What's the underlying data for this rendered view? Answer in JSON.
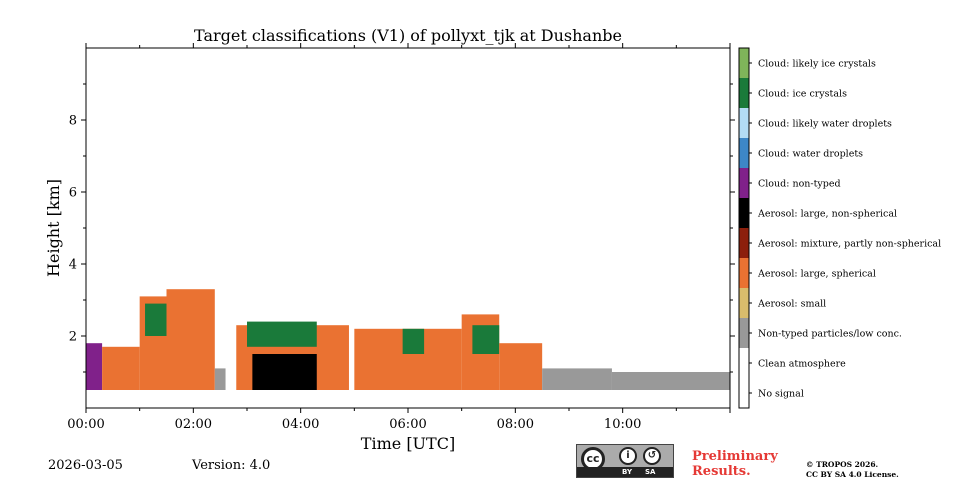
{
  "chart_data": {
    "type": "heatmap",
    "title": "Target classifications (V1) of pollyxt_tjk at Dushanbe",
    "xlabel": "Time [UTC]",
    "ylabel": "Height [km]",
    "xlim_hours": [
      0,
      12
    ],
    "ylim_km": [
      0,
      10
    ],
    "x_ticks": [
      {
        "value": 0,
        "label": "00:00"
      },
      {
        "value": 2,
        "label": "02:00"
      },
      {
        "value": 4,
        "label": "04:00"
      },
      {
        "value": 6,
        "label": "06:00"
      },
      {
        "value": 8,
        "label": "08:00"
      },
      {
        "value": 10,
        "label": "10:00"
      }
    ],
    "y_ticks": [
      {
        "value": 2,
        "label": "2"
      },
      {
        "value": 4,
        "label": "4"
      },
      {
        "value": 6,
        "label": "6"
      },
      {
        "value": 8,
        "label": "8"
      }
    ],
    "classes": [
      {
        "label": "Cloud: likely ice crystals",
        "color": "#7fb45a"
      },
      {
        "label": "Cloud: ice crystals",
        "color": "#1a7a3a"
      },
      {
        "label": "Cloud: likely water droplets",
        "color": "#b3dcf5"
      },
      {
        "label": "Cloud: water droplets",
        "color": "#3d87c7"
      },
      {
        "label": "Cloud: non-typed",
        "color": "#80218a"
      },
      {
        "label": "Aerosol: large, non-spherical",
        "color": "#000000"
      },
      {
        "label": "Aerosol: mixture, partly non-spherical",
        "color": "#8c1f0c"
      },
      {
        "label": "Aerosol: large, spherical",
        "color": "#ea7232"
      },
      {
        "label": "Aerosol: small",
        "color": "#d9bc6c"
      },
      {
        "label": "Non-typed particles/low conc.",
        "color": "#999999"
      },
      {
        "label": "Clean atmosphere",
        "color": "#ffffff"
      },
      {
        "label": "No signal",
        "color": "#ffffff"
      }
    ],
    "segments": [
      {
        "t0": 0.0,
        "t1": 0.3,
        "base_km": 0.5,
        "top_km": 1.8,
        "class": "Cloud: non-typed"
      },
      {
        "t0": 0.3,
        "t1": 1.0,
        "base_km": 0.5,
        "top_km": 1.7,
        "class": "Aerosol: large, spherical"
      },
      {
        "t0": 1.0,
        "t1": 1.5,
        "base_km": 0.5,
        "top_km": 3.1,
        "class": "Aerosol: large, spherical"
      },
      {
        "t0": 1.1,
        "t1": 1.8,
        "base_km": 2.0,
        "top_km": 2.9,
        "class": "Cloud: ice crystals"
      },
      {
        "t0": 1.5,
        "t1": 2.4,
        "base_km": 0.5,
        "top_km": 3.3,
        "class": "Aerosol: large, spherical"
      },
      {
        "t0": 2.4,
        "t1": 2.6,
        "base_km": 0.5,
        "top_km": 1.1,
        "class": "Non-typed particles/low conc."
      },
      {
        "t0": 2.8,
        "t1": 4.5,
        "base_km": 0.5,
        "top_km": 2.3,
        "class": "Aerosol: large, spherical"
      },
      {
        "t0": 3.1,
        "t1": 4.3,
        "base_km": 0.5,
        "top_km": 1.5,
        "class": "Aerosol: large, non-spherical"
      },
      {
        "t0": 3.0,
        "t1": 4.3,
        "base_km": 1.7,
        "top_km": 2.4,
        "class": "Cloud: ice crystals"
      },
      {
        "t0": 4.5,
        "t1": 4.9,
        "base_km": 0.5,
        "top_km": 2.3,
        "class": "Aerosol: large, spherical"
      },
      {
        "t0": 5.0,
        "t1": 7.0,
        "base_km": 0.5,
        "top_km": 2.2,
        "class": "Aerosol: large, spherical"
      },
      {
        "t0": 5.9,
        "t1": 6.3,
        "base_km": 1.5,
        "top_km": 2.2,
        "class": "Cloud: ice crystals"
      },
      {
        "t0": 7.0,
        "t1": 7.7,
        "base_km": 0.5,
        "top_km": 2.6,
        "class": "Aerosol: large, spherical"
      },
      {
        "t0": 7.2,
        "t1": 7.7,
        "base_km": 1.5,
        "top_km": 2.3,
        "class": "Cloud: ice crystals"
      },
      {
        "t0": 7.7,
        "t1": 8.5,
        "base_km": 0.5,
        "top_km": 1.8,
        "class": "Aerosol: large, spherical"
      },
      {
        "t0": 8.5,
        "t1": 9.8,
        "base_km": 0.5,
        "top_km": 1.1,
        "class": "Non-typed particles/low conc."
      },
      {
        "t0": 9.8,
        "t1": 12.0,
        "base_km": 0.5,
        "top_km": 1.0,
        "class": "Non-typed particles/low conc."
      }
    ]
  },
  "footer": {
    "date": "2026-03-05",
    "version": "Version: 4.0",
    "preliminary_line1": "Preliminary",
    "preliminary_line2": "Results.",
    "copyright_line1": "© TROPOS 2026.",
    "copyright_line2": "CC BY SA 4.0 License.",
    "license_badge": "cc",
    "license_by": "BY",
    "license_sa": "SA"
  }
}
